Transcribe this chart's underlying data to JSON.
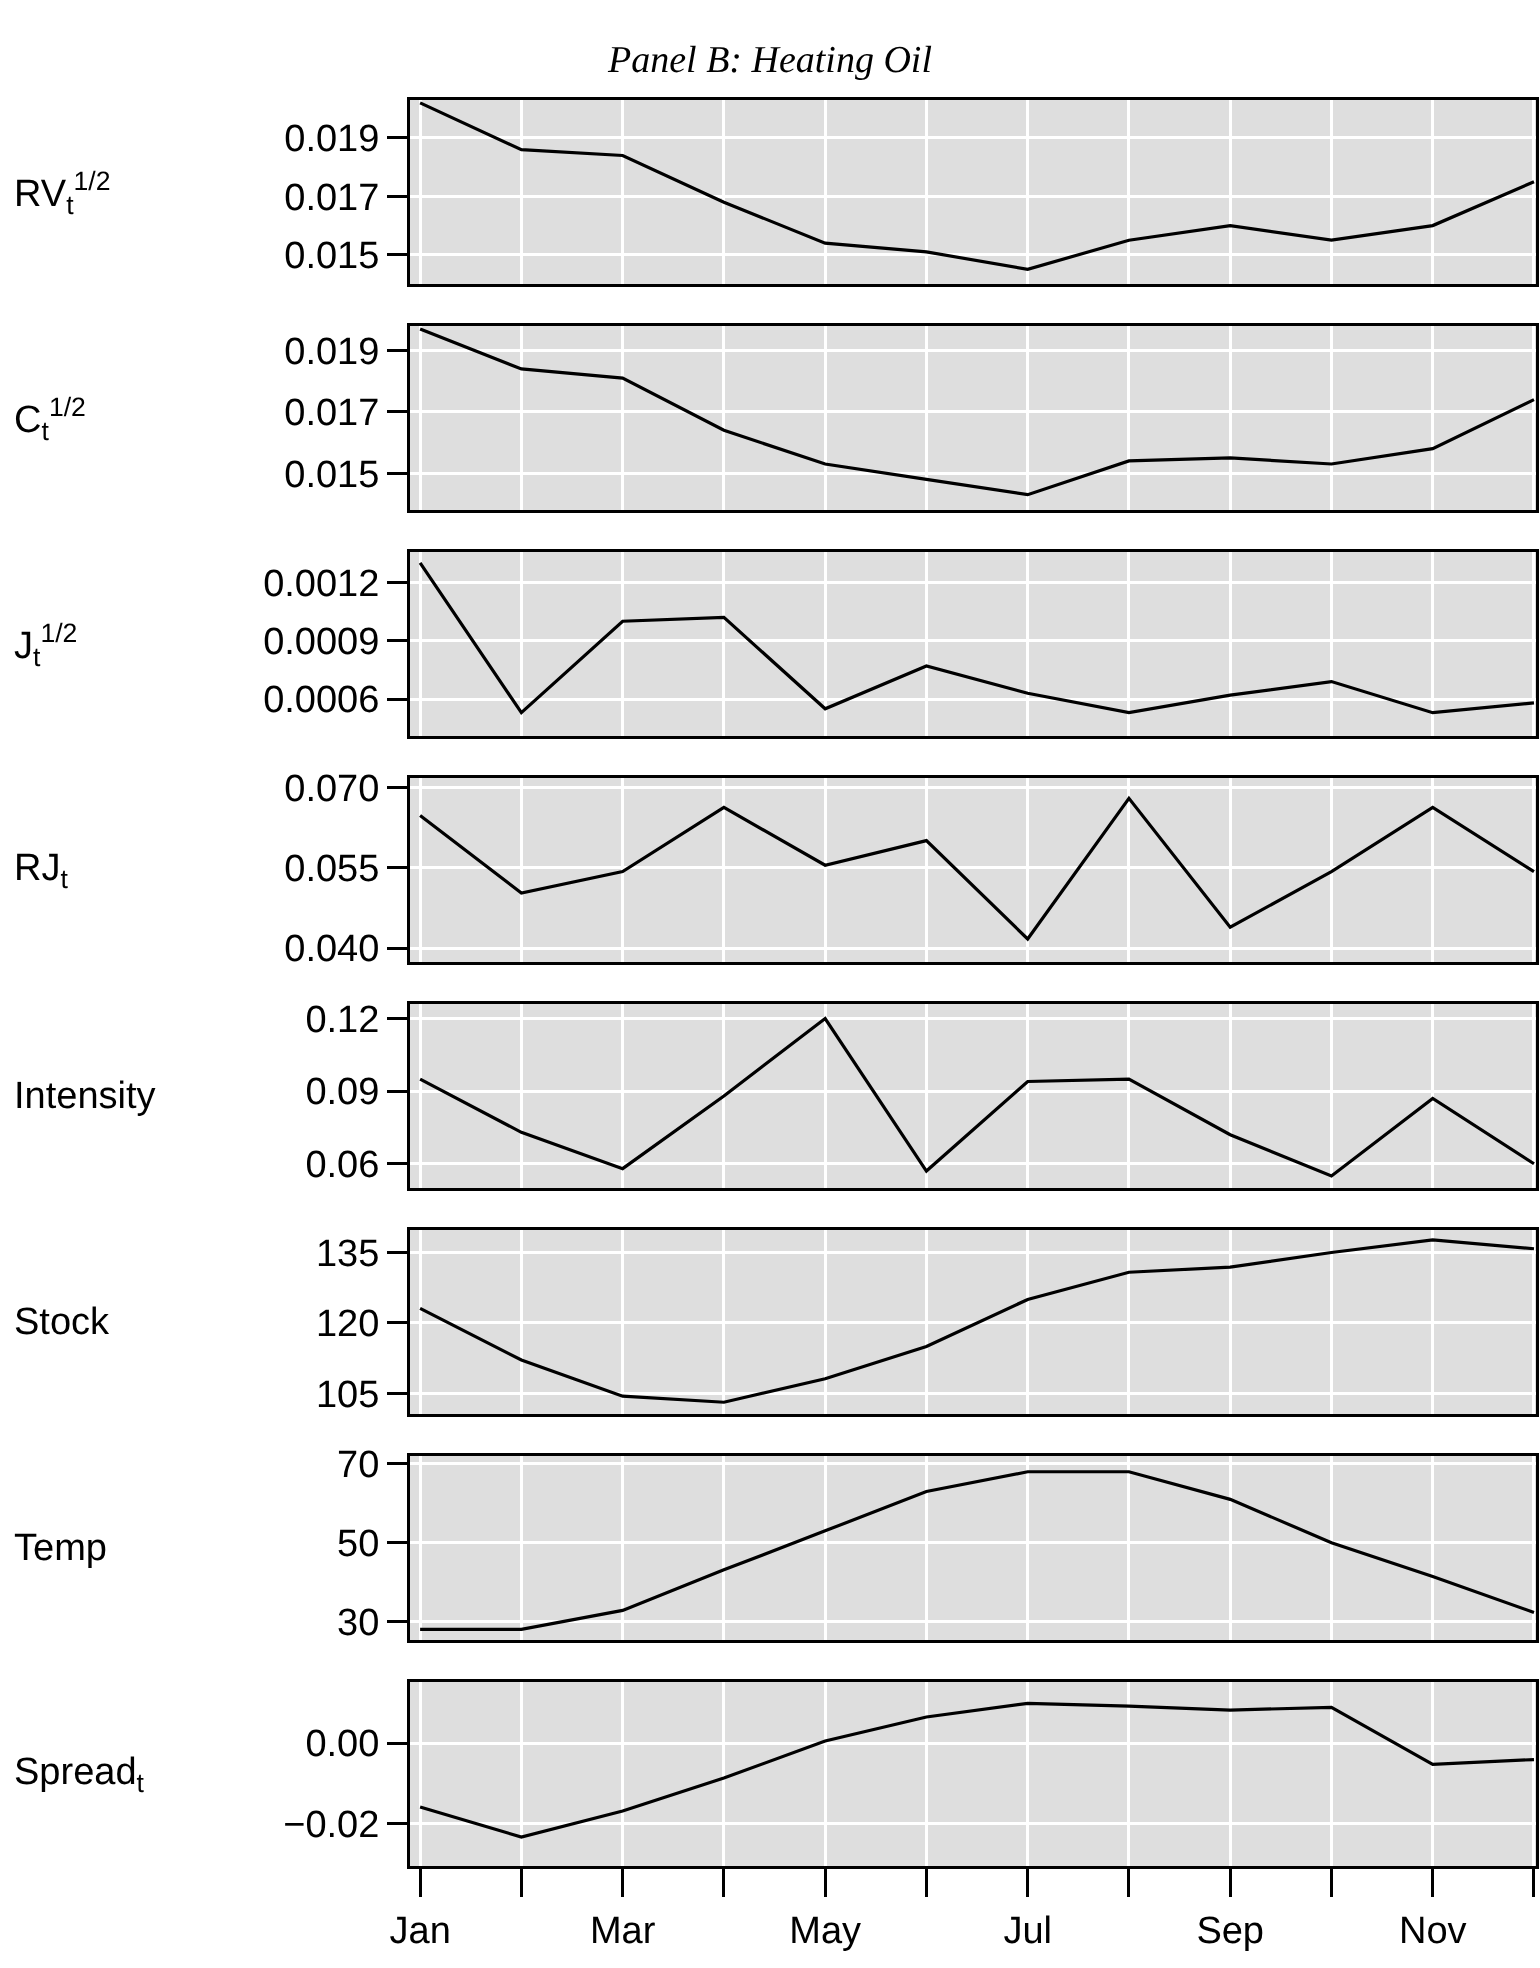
{
  "chart_data": [
    {
      "type": "line",
      "title": "Panel B: Heating Oil",
      "ylabel": "RV$_{t}$$^{1/2}$",
      "categories": [
        null,
        null,
        null,
        null,
        null,
        null,
        null,
        null,
        null,
        null,
        null,
        null
      ],
      "series": [
        {
          "color": "#000000",
          "values": [
            0.0202,
            0.0186,
            0.0184,
            0.0168,
            0.0154,
            0.0151,
            0.0145,
            0.0155,
            0.016,
            0.0155,
            0.016,
            0.0175
          ]
        }
      ],
      "ylim": [
        0.014,
        0.0203
      ],
      "yticks": [
        0.015,
        0.017,
        0.019
      ],
      "grid": true,
      "tick_labels": "y"
    },
    {
      "type": "line",
      "ylabel": "C$_{t}$$^{1/2}$",
      "categories": [
        null,
        null,
        null,
        null,
        null,
        null,
        null,
        null,
        null,
        null,
        null,
        null
      ],
      "series": [
        {
          "color": "#000000",
          "values": [
            0.0197,
            0.0184,
            0.0181,
            0.0164,
            0.0153,
            0.0148,
            0.0143,
            0.0154,
            0.0155,
            0.0153,
            0.0158,
            0.0174
          ]
        }
      ],
      "ylim": [
        0.0138,
        0.0198
      ],
      "yticks": [
        0.015,
        0.017,
        0.019
      ],
      "grid": true,
      "tick_labels": "y"
    },
    {
      "type": "line",
      "ylabel": "J$_{t}$$^{1/2}$",
      "categories": [
        null,
        null,
        null,
        null,
        null,
        null,
        null,
        null,
        null,
        null,
        null,
        null
      ],
      "series": [
        {
          "color": "#000000",
          "values": [
            0.0013,
            0.00053,
            0.001,
            0.00102,
            0.00055,
            0.00077,
            0.00063,
            0.00053,
            0.00062,
            0.00069,
            0.00053,
            0.00058
          ]
        }
      ],
      "ylim": [
        0.00041,
        0.001356
      ],
      "yticks": [
        0.0006,
        0.0009,
        0.0012
      ],
      "grid": true,
      "tick_labels": "y"
    },
    {
      "type": "line",
      "ylabel": "RJ$_{t}$",
      "categories": [
        null,
        null,
        null,
        null,
        null,
        null,
        null,
        null,
        null,
        null,
        null,
        null
      ],
      "series": [
        {
          "color": "#000000",
          "values": [
            0.0648,
            0.0503,
            0.0543,
            0.0663,
            0.0555,
            0.0601,
            0.0417,
            0.068,
            0.0439,
            0.0543,
            0.0663,
            0.0543
          ]
        }
      ],
      "ylim": [
        0.0374,
        0.0718
      ],
      "yticks": [
        {
          "value": 0.04,
          "label": "0.040"
        },
        0.055,
        {
          "value": 0.07,
          "label": "0.070"
        }
      ],
      "grid": true,
      "tick_labels": "y"
    },
    {
      "type": "line",
      "ylabel": "Intensity",
      "categories": [
        null,
        null,
        null,
        null,
        null,
        null,
        null,
        null,
        null,
        null,
        null,
        null
      ],
      "series": [
        {
          "color": "#000000",
          "values": [
            0.095,
            0.073,
            0.058,
            0.088,
            0.12,
            0.057,
            0.094,
            0.095,
            0.072,
            0.055,
            0.087,
            0.06
          ]
        }
      ],
      "ylim": [
        0.05,
        0.126
      ],
      "yticks": [
        0.06,
        0.09,
        0.12
      ],
      "grid": true,
      "tick_labels": "y"
    },
    {
      "type": "line",
      "ylabel": "Stock",
      "categories": [
        null,
        null,
        null,
        null,
        null,
        null,
        null,
        null,
        null,
        null,
        null,
        null
      ],
      "series": [
        {
          "color": "#000000",
          "values": [
            123.1,
            112.1,
            104.4,
            103.1,
            108.1,
            115,
            125,
            130.8,
            131.9,
            135,
            137.7,
            135.8
          ]
        }
      ],
      "ylim": [
        100.6,
        139.8
      ],
      "yticks": [
        105,
        120,
        135
      ],
      "grid": true,
      "tick_labels": "y"
    },
    {
      "type": "line",
      "ylabel": "Temp",
      "categories": [
        null,
        null,
        null,
        null,
        null,
        null,
        null,
        null,
        null,
        null,
        null,
        null
      ],
      "series": [
        {
          "color": "#000000",
          "values": [
            28,
            28,
            32.8,
            43.1,
            53,
            63,
            68,
            68,
            61,
            50,
            41.4,
            32.3
          ]
        }
      ],
      "ylim": [
        25.3,
        72
      ],
      "yticks": [
        30,
        50,
        70
      ],
      "grid": true,
      "tick_labels": "y"
    },
    {
      "type": "line",
      "ylabel": "Spread$_{t}$",
      "categories": [
        "Jan",
        null,
        "Mar",
        null,
        "May",
        null,
        "Jul",
        null,
        "Sep",
        null,
        "Nov",
        null
      ],
      "series": [
        {
          "color": "#000000",
          "values": [
            -0.0159,
            -0.0234,
            -0.0169,
            -0.0087,
            0.0005,
            0.0065,
            0.0099,
            0.0092,
            0.0082,
            0.0089,
            -0.0053,
            -0.0041
          ]
        }
      ],
      "ylim": [
        -0.0306,
        0.0152
      ],
      "yticks": [
        {
          "value": -0.02,
          "label": "−0.02"
        },
        {
          "value": 0,
          "label": "0.00"
        }
      ],
      "grid": true
    }
  ]
}
